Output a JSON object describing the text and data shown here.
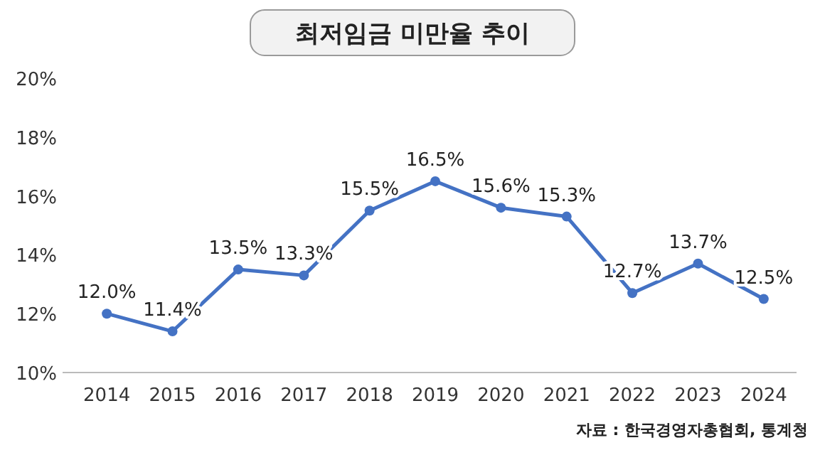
{
  "chart_data": {
    "type": "line",
    "title": "최저임금 미만율 추이",
    "categories": [
      "2014",
      "2015",
      "2016",
      "2017",
      "2018",
      "2019",
      "2020",
      "2021",
      "2022",
      "2023",
      "2024"
    ],
    "series": [
      {
        "color": "#4472c4",
        "values": [
          12.0,
          11.4,
          13.5,
          13.3,
          15.5,
          16.5,
          15.6,
          15.3,
          12.7,
          13.7,
          12.5
        ],
        "value_labels": [
          "12.0%",
          "11.4%",
          "13.5%",
          "13.3%",
          "15.5%",
          "16.5%",
          "15.6%",
          "15.3%",
          "12.7%",
          "13.7%",
          "12.5%"
        ]
      }
    ],
    "ylim": [
      10,
      20
    ],
    "yticks": [
      {
        "value": 10,
        "label": "10%"
      },
      {
        "value": 12,
        "label": "12%"
      },
      {
        "value": 14,
        "label": "14%"
      },
      {
        "value": 16,
        "label": "16%"
      },
      {
        "value": 18,
        "label": "18%"
      },
      {
        "value": 20,
        "label": "20%"
      }
    ],
    "marker": "circle",
    "line_style": "solid",
    "grid": false,
    "annotations": [
      "자료 : 한국경영자총협회, 통계청"
    ]
  }
}
